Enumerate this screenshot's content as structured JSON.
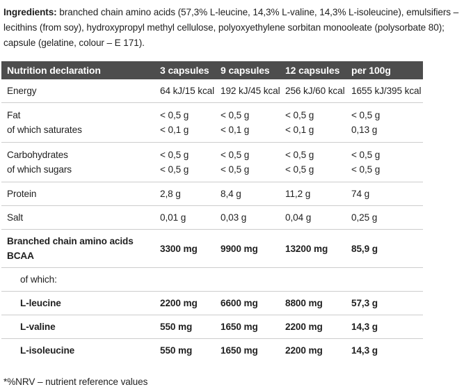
{
  "ingredients": {
    "label": "Ingredients:",
    "text": " branched chain amino acids (57,3% L-leucine, 14,3% L-valine, 14,3% L-isoleucine), emulsifiers – lecithins (from soy), hydroxypropyl methyl cellulose, polyoxyethylene sorbitan monooleate (polysorbate 80); capsule (gelatine, colour – E 171)."
  },
  "table": {
    "headers": [
      "Nutrition declaration",
      "3 capsules",
      "9 capsules",
      "12 capsules",
      "per 100g"
    ],
    "rows": [
      {
        "labels": [
          "Energy"
        ],
        "values": [
          [
            "64 kJ/15 kcal",
            "192 kJ/45 kcal",
            "256 kJ/60 kcal",
            "1655 kJ/395 kcal"
          ]
        ]
      },
      {
        "labels": [
          "Fat",
          "of which saturates"
        ],
        "group": true,
        "values": [
          [
            "< 0,5 g",
            "< 0,5 g",
            "< 0,5 g",
            "< 0,5 g"
          ],
          [
            "< 0,1 g",
            "< 0,1 g",
            "< 0,1 g",
            "0,13 g"
          ]
        ]
      },
      {
        "labels": [
          "Carbohydrates",
          "of which sugars"
        ],
        "group": true,
        "values": [
          [
            "< 0,5 g",
            "< 0,5 g",
            "< 0,5 g",
            "< 0,5 g"
          ],
          [
            "< 0,5 g",
            "< 0,5 g",
            "< 0,5 g",
            "< 0,5 g"
          ]
        ]
      },
      {
        "labels": [
          "Protein"
        ],
        "values": [
          [
            "2,8 g",
            "8,4 g",
            "11,2 g",
            "74 g"
          ]
        ]
      },
      {
        "labels": [
          "Salt"
        ],
        "values": [
          [
            "0,01 g",
            "0,03 g",
            "0,04 g",
            "0,25 g"
          ]
        ]
      },
      {
        "labels": [
          "Branched chain amino acids BCAA"
        ],
        "bold": true,
        "values": [
          [
            "3300 mg",
            "9900 mg",
            "13200 mg",
            "85,9 g"
          ]
        ]
      },
      {
        "labels": [
          "of which:"
        ],
        "indent": true,
        "values": [
          [
            "",
            "",
            "",
            ""
          ]
        ]
      },
      {
        "labels": [
          "L-leucine"
        ],
        "bold": true,
        "indent": true,
        "values": [
          [
            "2200 mg",
            "6600 mg",
            "8800 mg",
            "57,3 g"
          ]
        ]
      },
      {
        "labels": [
          "L-valine"
        ],
        "bold": true,
        "indent": true,
        "values": [
          [
            "550 mg",
            "1650 mg",
            "2200 mg",
            "14,3 g"
          ]
        ]
      },
      {
        "labels": [
          "L-isoleucine"
        ],
        "bold": true,
        "indent": true,
        "noBorder": true,
        "values": [
          [
            "550 mg",
            "1650 mg",
            "2200 mg",
            "14,3 g"
          ]
        ]
      }
    ]
  },
  "footnote": "*%NRV – nutrient reference values",
  "colors": {
    "header_background": "#4d4d4d",
    "header_text": "#ffffff",
    "body_text": "#1f1f1f",
    "row_border": "#cccccc"
  }
}
